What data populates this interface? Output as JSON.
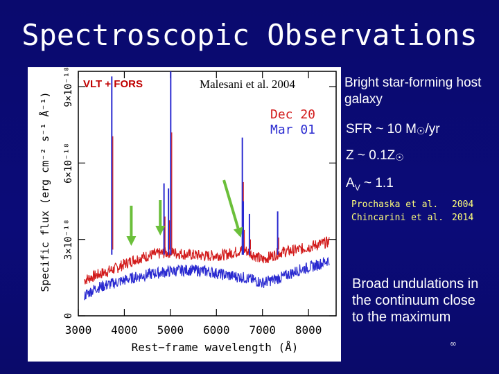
{
  "slide": {
    "title": "Spectroscopic Observations",
    "page_number": "60"
  },
  "figure": {
    "instrument_label": "VLT + FORS",
    "citation": "Malesani et al. 2004",
    "legend": [
      {
        "label": "Dec 20",
        "color": "#d21a1a"
      },
      {
        "label": "Mar 01",
        "color": "#2a2ad0"
      }
    ],
    "arrow_color": "#6bbf3a"
  },
  "chart_data": {
    "type": "line",
    "title": "",
    "xlabel": "Rest−frame wavelength (Å)",
    "ylabel": "Specific flux (erg cm⁻² s⁻¹ Å⁻¹)",
    "xlim": [
      3000,
      8600
    ],
    "ylim": [
      0,
      9.6e-18
    ],
    "x_ticks": [
      "3000",
      "4000",
      "5000",
      "6000",
      "7000",
      "8000"
    ],
    "y_ticks": [
      "0",
      "3×10⁻¹⁸",
      "6×10⁻¹⁸",
      "9×10⁻¹⁸"
    ],
    "series": [
      {
        "name": "Dec 20",
        "color": "#d21a1a",
        "x": [
          3130,
          3400,
          3800,
          4200,
          4600,
          5000,
          5400,
          5800,
          6200,
          6600,
          7000,
          7400,
          7800,
          8200,
          8450
        ],
        "y": [
          1.4,
          1.6,
          1.85,
          2.2,
          2.4,
          2.5,
          2.4,
          2.35,
          2.4,
          2.6,
          2.2,
          2.5,
          2.6,
          2.8,
          2.9
        ]
      },
      {
        "name": "Mar 01",
        "color": "#2a2ad0",
        "x": [
          3130,
          3400,
          3800,
          4200,
          4600,
          5000,
          5400,
          5800,
          6200,
          6600,
          7000,
          7400,
          7800,
          8200,
          8450
        ],
        "y": [
          0.8,
          1.1,
          1.3,
          1.5,
          1.65,
          1.75,
          1.8,
          1.75,
          1.6,
          1.5,
          1.3,
          1.5,
          1.8,
          2.0,
          2.2
        ]
      }
    ],
    "emission_lines": [
      {
        "x": 3727,
        "y": 9.4
      },
      {
        "x": 4861,
        "y": 5.2
      },
      {
        "x": 4959,
        "y": 5.0
      },
      {
        "x": 5007,
        "y": 9.6
      },
      {
        "x": 6563,
        "y": 7.0
      },
      {
        "x": 6583,
        "y": 4.5
      },
      {
        "x": 6717,
        "y": 4.0
      },
      {
        "x": 7330,
        "y": 4.1
      }
    ],
    "arrows": [
      {
        "x": 4150
      },
      {
        "x": 4780
      },
      {
        "x": 6560
      }
    ]
  },
  "notes": {
    "host": "Bright star-forming host galaxy",
    "sfr_prefix": "SFR ~ 10 M",
    "sfr_suffix": "/yr",
    "z_prefix": "Z ~ 0.1Z",
    "av_prefix": "A",
    "av_sub": "V",
    "av_suffix": " ~ 1.1",
    "sun_symbol": "☉",
    "references": [
      {
        "author": "Prochaska et al.",
        "year": "2004"
      },
      {
        "author": "Chincarini et al.",
        "year": "2014"
      }
    ],
    "broad": "Broad undulations in the continuum close to the maximum"
  }
}
